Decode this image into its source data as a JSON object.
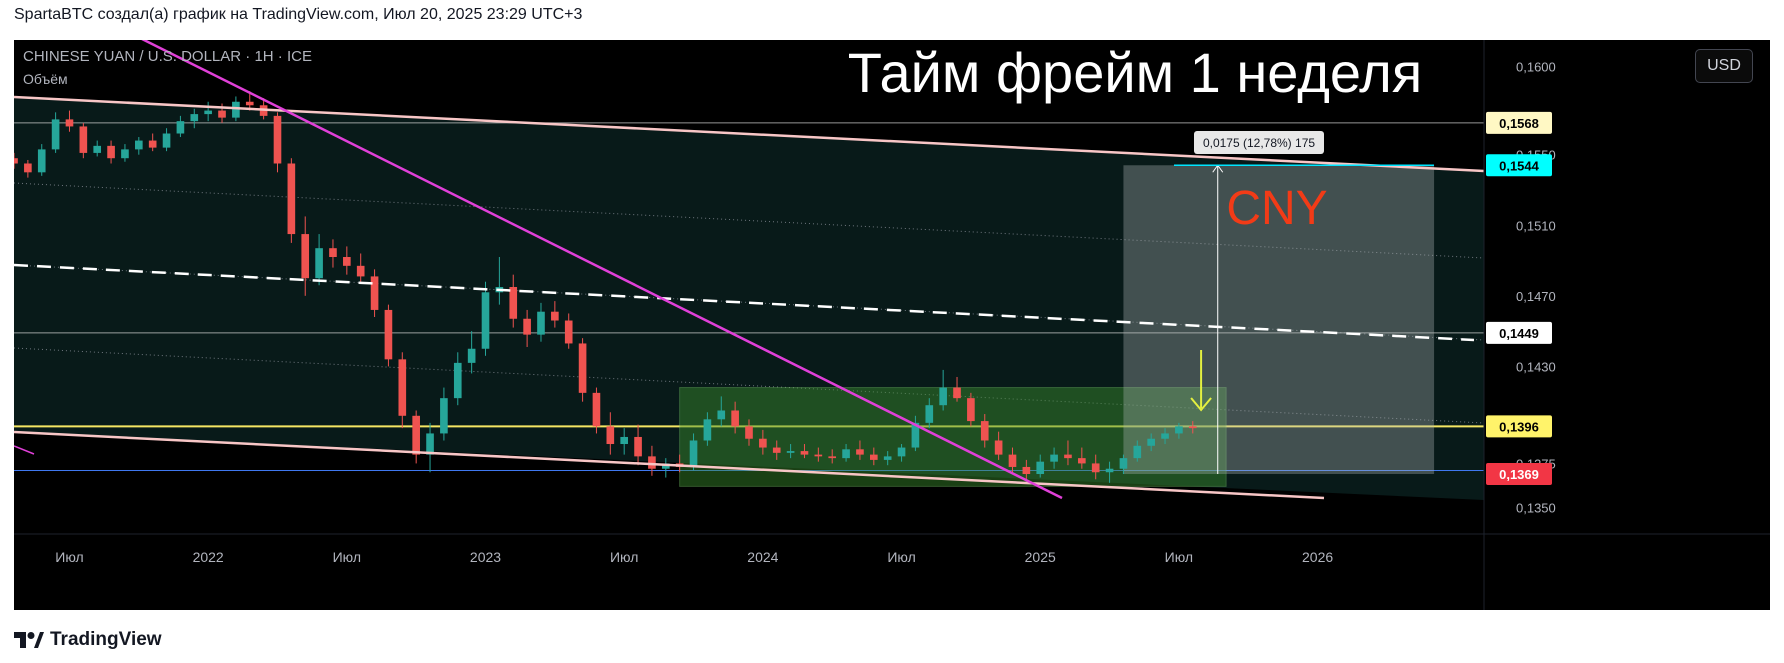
{
  "header": {
    "attribution": "SpartaBTC создал(а) график на TradingView.com, Июл 20, 2025 23:29 UTC+3"
  },
  "chart_header": {
    "symbol": "CHINESE YUAN / U.S. DOLLAR · 1H · ICE",
    "volume_label": "Объём",
    "currency_button": "USD"
  },
  "annotations": {
    "big_title": "Тайм фрейм 1 неделя",
    "cny_label": "CNY",
    "measure_label": "0,0175 (12,78%) 175"
  },
  "footer": {
    "brand": "TradingView"
  },
  "colors": {
    "background": "#000000",
    "up_candle": "#26a69a",
    "down_candle": "#ef5350",
    "trendline_magenta": "#e040d8",
    "channel_pink": "#f8c6c6",
    "support_yellow": "#f5e663",
    "support_blue": "#3f78f0",
    "cny_text": "#f23b17",
    "range_box": "#3b8f2e",
    "arrow": "#e4f040"
  },
  "chart_data": {
    "type": "candlestick",
    "title": "CHINESE YUAN / U.S. DOLLAR · 1H · ICE",
    "xlabel": "",
    "ylabel": "",
    "x_ticks": [
      "Июл",
      "2022",
      "Июл",
      "2023",
      "Июл",
      "2024",
      "Июл",
      "2025",
      "Июл",
      "2026"
    ],
    "y_ticks": [
      "0,1600",
      "0,1550",
      "0,1510",
      "0,1470",
      "0,1430",
      "0,1375",
      "0,1350"
    ],
    "price_labels": [
      {
        "label": "0,1568",
        "value": 0.1568,
        "color": "#fff8c4",
        "text_color": "#000000"
      },
      {
        "label": "0,1544",
        "value": 0.1544,
        "color": "#00ffff",
        "text_color": "#000000"
      },
      {
        "label": "0,1449",
        "value": 0.1449,
        "color": "#ffffff",
        "text_color": "#000000"
      },
      {
        "label": "0,1396",
        "value": 0.1396,
        "color": "#fff36a",
        "text_color": "#000000"
      },
      {
        "label": "0,1369",
        "value": 0.1369,
        "color": "#f23645",
        "text_color": "#ffffff"
      }
    ],
    "ylim": [
      0.1335,
      0.1615
    ],
    "xlim": [
      2021.3,
      2026.6
    ],
    "horizontal_lines": [
      {
        "value": 0.1568,
        "color": "#d8d8d8",
        "style": "solid"
      },
      {
        "value": 0.1449,
        "color": "#d8d8d8",
        "style": "solid"
      },
      {
        "value": 0.1396,
        "color": "#f5e663",
        "style": "solid"
      },
      {
        "value": 0.1371,
        "color": "#3f78f0",
        "style": "solid"
      }
    ],
    "measure": {
      "from": 0.1369,
      "to": 0.1544,
      "x": 2025.64,
      "label": "0,0175 (12,78%) 175"
    },
    "grid": false,
    "legend": "none",
    "ohlc_approx": [
      [
        2021.3,
        0.1548,
        0.1551,
        0.1542,
        0.1545
      ],
      [
        2021.35,
        0.1545,
        0.1547,
        0.1537,
        0.154
      ],
      [
        2021.4,
        0.154,
        0.1556,
        0.1538,
        0.1553
      ],
      [
        2021.45,
        0.1553,
        0.1574,
        0.1551,
        0.157
      ],
      [
        2021.5,
        0.157,
        0.1575,
        0.1563,
        0.1566
      ],
      [
        2021.55,
        0.1566,
        0.1568,
        0.1548,
        0.1551
      ],
      [
        2021.6,
        0.1551,
        0.1558,
        0.1549,
        0.1555
      ],
      [
        2021.65,
        0.1555,
        0.1558,
        0.1545,
        0.1548
      ],
      [
        2021.7,
        0.1548,
        0.1556,
        0.1546,
        0.1553
      ],
      [
        2021.75,
        0.1553,
        0.156,
        0.155,
        0.1558
      ],
      [
        2021.8,
        0.1558,
        0.1562,
        0.1552,
        0.1554
      ],
      [
        2021.85,
        0.1554,
        0.1565,
        0.1552,
        0.1562
      ],
      [
        2021.9,
        0.1562,
        0.1572,
        0.156,
        0.1569
      ],
      [
        2021.95,
        0.1569,
        0.1576,
        0.1565,
        0.1573
      ],
      [
        2022.0,
        0.1573,
        0.158,
        0.1569,
        0.1575
      ],
      [
        2022.05,
        0.1575,
        0.1579,
        0.1568,
        0.1571
      ],
      [
        2022.1,
        0.1571,
        0.1583,
        0.1569,
        0.158
      ],
      [
        2022.15,
        0.158,
        0.1586,
        0.1575,
        0.1578
      ],
      [
        2022.2,
        0.1578,
        0.1582,
        0.157,
        0.1572
      ],
      [
        2022.25,
        0.1572,
        0.1574,
        0.154,
        0.1545
      ],
      [
        2022.3,
        0.1545,
        0.1548,
        0.15,
        0.1505
      ],
      [
        2022.35,
        0.1505,
        0.1515,
        0.147,
        0.148
      ],
      [
        2022.4,
        0.148,
        0.1505,
        0.1476,
        0.1497
      ],
      [
        2022.45,
        0.1497,
        0.1502,
        0.1486,
        0.1492
      ],
      [
        2022.5,
        0.1492,
        0.1498,
        0.1482,
        0.1487
      ],
      [
        2022.55,
        0.1487,
        0.1494,
        0.1478,
        0.1481
      ],
      [
        2022.6,
        0.1481,
        0.1485,
        0.1458,
        0.1462
      ],
      [
        2022.65,
        0.1462,
        0.1465,
        0.143,
        0.1434
      ],
      [
        2022.7,
        0.1434,
        0.1438,
        0.1395,
        0.1402
      ],
      [
        2022.75,
        0.1402,
        0.1405,
        0.1375,
        0.138
      ],
      [
        2022.8,
        0.138,
        0.1398,
        0.137,
        0.1392
      ],
      [
        2022.85,
        0.1392,
        0.1418,
        0.1388,
        0.1412
      ],
      [
        2022.9,
        0.1412,
        0.1438,
        0.1408,
        0.1432
      ],
      [
        2022.95,
        0.1432,
        0.145,
        0.1426,
        0.144
      ],
      [
        2023.0,
        0.144,
        0.1478,
        0.1436,
        0.1472
      ],
      [
        2023.05,
        0.1472,
        0.1492,
        0.1465,
        0.1475
      ],
      [
        2023.1,
        0.1475,
        0.1482,
        0.1452,
        0.1457
      ],
      [
        2023.15,
        0.1457,
        0.1462,
        0.1441,
        0.1448
      ],
      [
        2023.2,
        0.1448,
        0.1466,
        0.1444,
        0.1461
      ],
      [
        2023.25,
        0.1461,
        0.1467,
        0.1452,
        0.1456
      ],
      [
        2023.3,
        0.1456,
        0.146,
        0.144,
        0.1443
      ],
      [
        2023.35,
        0.1443,
        0.1446,
        0.141,
        0.1415
      ],
      [
        2023.4,
        0.1415,
        0.1418,
        0.1392,
        0.1396
      ],
      [
        2023.45,
        0.1396,
        0.1404,
        0.138,
        0.1386
      ],
      [
        2023.5,
        0.1386,
        0.1395,
        0.138,
        0.139
      ],
      [
        2023.55,
        0.139,
        0.1397,
        0.1374,
        0.1379
      ],
      [
        2023.6,
        0.1379,
        0.1385,
        0.1368,
        0.1372
      ],
      [
        2023.65,
        0.1372,
        0.1378,
        0.1367,
        0.1375
      ],
      [
        2023.7,
        0.1375,
        0.138,
        0.137,
        0.1373
      ],
      [
        2023.75,
        0.1373,
        0.1392,
        0.1371,
        0.1388
      ],
      [
        2023.8,
        0.1388,
        0.1404,
        0.1385,
        0.14
      ],
      [
        2023.85,
        0.14,
        0.1413,
        0.1396,
        0.1405
      ],
      [
        2023.9,
        0.1405,
        0.141,
        0.1392,
        0.1396
      ],
      [
        2023.95,
        0.1396,
        0.14,
        0.1385,
        0.1389
      ],
      [
        2024.0,
        0.1389,
        0.1394,
        0.138,
        0.1384
      ],
      [
        2024.05,
        0.1384,
        0.1388,
        0.1377,
        0.1381
      ],
      [
        2024.1,
        0.1381,
        0.1386,
        0.1378,
        0.1382
      ],
      [
        2024.15,
        0.1382,
        0.1386,
        0.1378,
        0.138
      ],
      [
        2024.2,
        0.138,
        0.1384,
        0.1376,
        0.1379
      ],
      [
        2024.25,
        0.1379,
        0.1383,
        0.1375,
        0.1378
      ],
      [
        2024.3,
        0.1378,
        0.1386,
        0.1376,
        0.1383
      ],
      [
        2024.35,
        0.1383,
        0.1388,
        0.1377,
        0.138
      ],
      [
        2024.4,
        0.138,
        0.1384,
        0.1374,
        0.1377
      ],
      [
        2024.45,
        0.1377,
        0.1382,
        0.1374,
        0.1379
      ],
      [
        2024.5,
        0.1379,
        0.1386,
        0.1376,
        0.1384
      ],
      [
        2024.55,
        0.1384,
        0.1402,
        0.1382,
        0.1398
      ],
      [
        2024.6,
        0.1398,
        0.1412,
        0.1395,
        0.1408
      ],
      [
        2024.65,
        0.1408,
        0.1428,
        0.1405,
        0.1418
      ],
      [
        2024.7,
        0.1418,
        0.1424,
        0.141,
        0.1412
      ],
      [
        2024.75,
        0.1412,
        0.1415,
        0.1396,
        0.1399
      ],
      [
        2024.8,
        0.1399,
        0.1403,
        0.1384,
        0.1388
      ],
      [
        2024.85,
        0.1388,
        0.1393,
        0.1377,
        0.138
      ],
      [
        2024.9,
        0.138,
        0.1384,
        0.137,
        0.1373
      ],
      [
        2024.95,
        0.1373,
        0.1377,
        0.1366,
        0.1369
      ],
      [
        2025.0,
        0.1369,
        0.138,
        0.1367,
        0.1376
      ],
      [
        2025.05,
        0.1376,
        0.1384,
        0.1372,
        0.138
      ],
      [
        2025.1,
        0.138,
        0.1388,
        0.1374,
        0.1378
      ],
      [
        2025.15,
        0.1378,
        0.1384,
        0.1372,
        0.1375
      ],
      [
        2025.2,
        0.1375,
        0.138,
        0.1366,
        0.137
      ],
      [
        2025.25,
        0.137,
        0.1376,
        0.1364,
        0.1372
      ],
      [
        2025.3,
        0.1372,
        0.138,
        0.1369,
        0.1378
      ],
      [
        2025.35,
        0.1378,
        0.1388,
        0.1376,
        0.1385
      ],
      [
        2025.4,
        0.1385,
        0.1392,
        0.1382,
        0.1389
      ],
      [
        2025.45,
        0.1389,
        0.1395,
        0.1386,
        0.1392
      ],
      [
        2025.5,
        0.1392,
        0.1398,
        0.1389,
        0.1396
      ],
      [
        2025.55,
        0.1396,
        0.1399,
        0.1392,
        0.1395
      ]
    ]
  }
}
